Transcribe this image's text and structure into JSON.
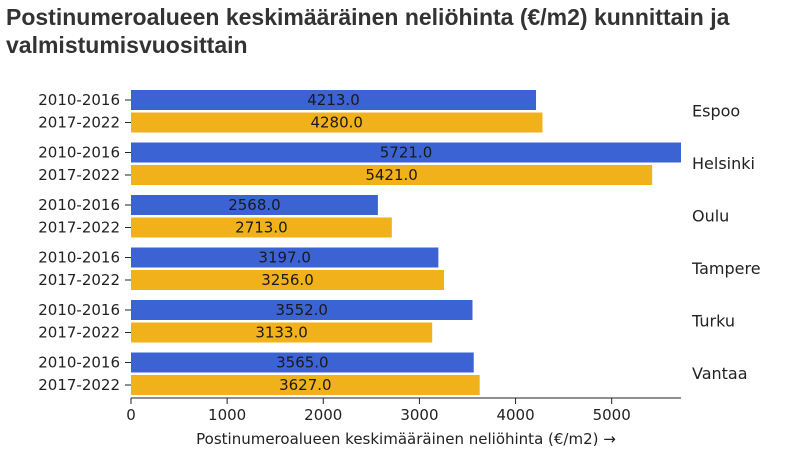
{
  "chart_data": {
    "type": "bar",
    "orientation": "horizontal",
    "title": "Postinumeroalueen keskimääräinen neliöhinta (€/m2) kunnittain ja valmistumisvuosittain",
    "xlabel": "Postinumeroalueen keskimääräinen neliöhinta (€/m2) →",
    "xlim": [
      0,
      5721
    ],
    "xticks": [
      0,
      1000,
      2000,
      3000,
      4000,
      5000
    ],
    "groups": [
      "Espoo",
      "Helsinki",
      "Oulu",
      "Tampere",
      "Turku",
      "Vantaa"
    ],
    "series": [
      {
        "name": "2010-2016",
        "color": "#3b63d4",
        "values": [
          4213.0,
          5721.0,
          2568.0,
          3197.0,
          3552.0,
          3565.0
        ],
        "labels": [
          "4213.0",
          "5721.0",
          "2568.0",
          "3197.0",
          "3552.0",
          "3565.0"
        ]
      },
      {
        "name": "2017-2022",
        "color": "#f0b11b",
        "values": [
          4280.0,
          5421.0,
          2713.0,
          3256.0,
          3133.0,
          3627.0
        ],
        "labels": [
          "4280.0",
          "5421.0",
          "2713.0",
          "3256.0",
          "3133.0",
          "3627.0"
        ]
      }
    ],
    "grid": false,
    "legend": "none"
  }
}
